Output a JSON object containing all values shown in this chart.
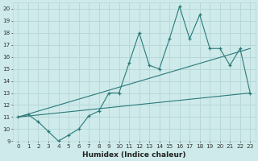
{
  "title": "",
  "xlabel": "Humidex (Indice chaleur)",
  "xlim": [
    -0.5,
    23.5
  ],
  "ylim": [
    9,
    20.5
  ],
  "yticks": [
    9,
    10,
    11,
    12,
    13,
    14,
    15,
    16,
    17,
    18,
    19,
    20
  ],
  "xticks": [
    0,
    1,
    2,
    3,
    4,
    5,
    6,
    7,
    8,
    9,
    10,
    11,
    12,
    13,
    14,
    15,
    16,
    17,
    18,
    19,
    20,
    21,
    22,
    23
  ],
  "bg_color": "#ceeaea",
  "line_color": "#2a7a7a",
  "grid_color": "#b8d8d8",
  "line1_x": [
    0,
    1,
    2,
    3,
    4,
    5,
    6,
    7,
    8,
    9,
    10,
    11,
    12,
    13,
    14,
    15,
    16,
    17,
    18,
    19,
    20,
    21,
    22,
    23
  ],
  "line1_y": [
    11.0,
    11.2,
    10.6,
    9.8,
    9.0,
    9.5,
    10.0,
    11.1,
    11.5,
    13.0,
    13.0,
    15.5,
    18.0,
    15.3,
    15.0,
    17.5,
    20.2,
    17.5,
    19.5,
    16.7,
    16.7,
    15.3,
    16.7,
    13.0
  ],
  "line2_x": [
    0,
    23
  ],
  "line2_y": [
    11.0,
    16.7
  ],
  "line3_x": [
    0,
    23
  ],
  "line3_y": [
    11.0,
    13.0
  ],
  "tick_fontsize": 5.5,
  "xlabel_fontsize": 6.5
}
